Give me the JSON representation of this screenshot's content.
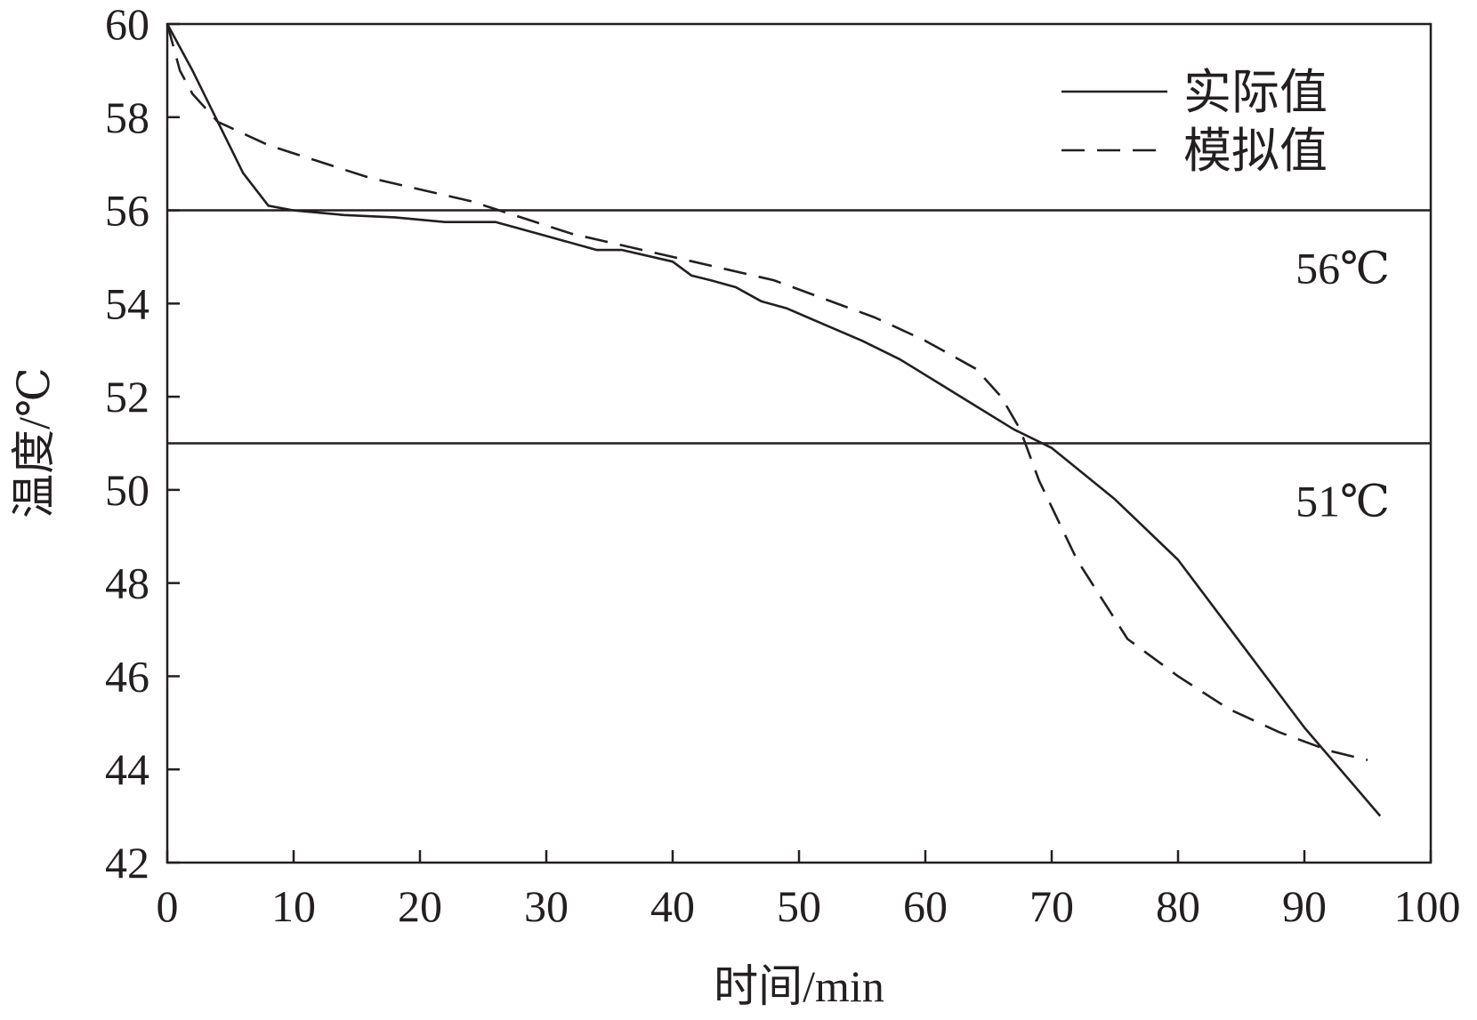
{
  "chart_data": {
    "type": "line",
    "xlabel": "时间/min",
    "ylabel": "温度/℃",
    "xlim": [
      0,
      100
    ],
    "ylim": [
      42,
      60
    ],
    "x_ticks": [
      "0",
      "10",
      "20",
      "30",
      "40",
      "50",
      "60",
      "70",
      "80",
      "90",
      "100"
    ],
    "y_ticks": [
      "42",
      "44",
      "46",
      "48",
      "50",
      "52",
      "54",
      "56",
      "58",
      "60"
    ],
    "grid": false,
    "legend_position": "top-right",
    "series": [
      {
        "name": "实际值",
        "style": "solid",
        "x": [
          0,
          2,
          4,
          6,
          8,
          10,
          14,
          18,
          22,
          26,
          30,
          34,
          36,
          40,
          41.5,
          43,
          45,
          47,
          49,
          52,
          55,
          58,
          61,
          64,
          67,
          70,
          75,
          80,
          85,
          90,
          96
        ],
        "y": [
          60,
          59,
          57.9,
          56.8,
          56.1,
          56.0,
          55.9,
          55.85,
          55.75,
          55.75,
          55.45,
          55.15,
          55.15,
          54.9,
          54.6,
          54.5,
          54.35,
          54.05,
          53.9,
          53.55,
          53.2,
          52.8,
          52.3,
          51.8,
          51.3,
          50.9,
          49.8,
          48.5,
          46.7,
          44.9,
          43.0
        ]
      },
      {
        "name": "模拟值",
        "style": "dashed",
        "x": [
          0,
          1,
          2,
          4,
          8,
          16,
          24,
          32,
          40,
          48,
          56,
          60,
          64,
          66,
          67.5,
          69,
          72,
          76,
          80,
          84,
          88,
          92,
          95
        ],
        "y": [
          60,
          59,
          58.5,
          57.9,
          57.4,
          56.7,
          56.2,
          55.5,
          55.0,
          54.5,
          53.7,
          53.2,
          52.6,
          52.0,
          51.3,
          50.2,
          48.5,
          46.8,
          46.0,
          45.3,
          44.8,
          44.4,
          44.2
        ]
      }
    ],
    "reference_lines": [
      {
        "y": 56,
        "label": "56℃"
      },
      {
        "y": 51,
        "label": "51℃"
      }
    ]
  }
}
